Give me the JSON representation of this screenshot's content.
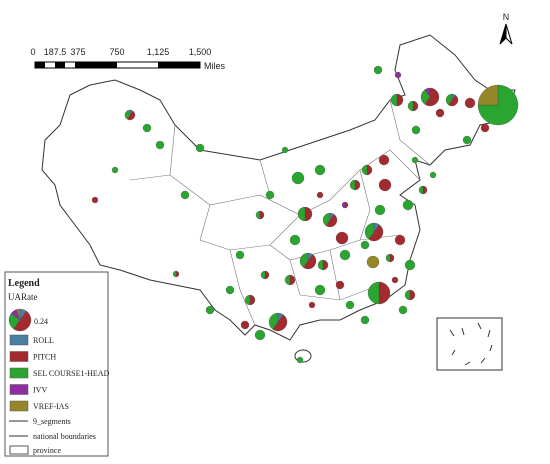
{
  "scale_bar": {
    "ticks": [
      "0",
      "187.5",
      "375",
      "750",
      "1,125",
      "1,500"
    ],
    "unit": "Miles"
  },
  "north_arrow": "N",
  "legend": {
    "title": "Legend",
    "field": "UARate",
    "size_label": "0.24",
    "items": [
      {
        "label": "ROLL",
        "color": "#4a7fa0"
      },
      {
        "label": "PITCH",
        "color": "#a32a2f"
      },
      {
        "label": "SEL COURSE1-HEAD",
        "color": "#2aa630"
      },
      {
        "label": "IVV",
        "color": "#8e2fa0"
      },
      {
        "label": "VREF-IAS",
        "color": "#96862a"
      }
    ],
    "lines": [
      "9_segments",
      "national boundaries",
      "province"
    ]
  }
}
